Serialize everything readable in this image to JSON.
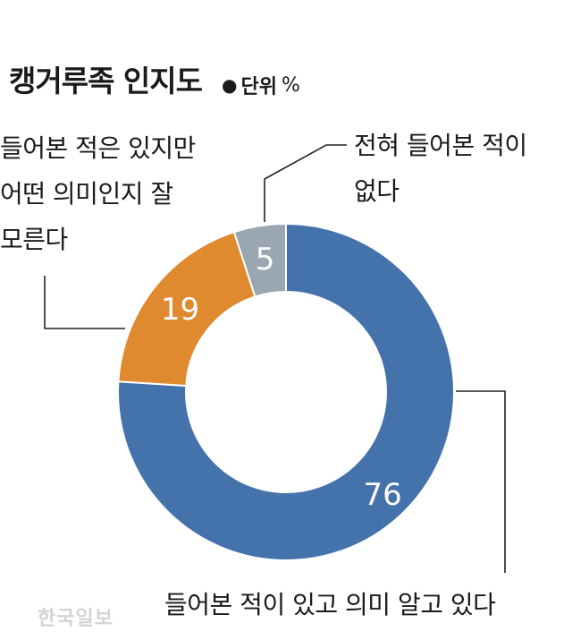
{
  "title": "캥거루족 인지도",
  "unit_label": "단위",
  "unit_symbol": "%",
  "chart_data": {
    "type": "pie",
    "donut": true,
    "slices": [
      {
        "label": "들어본 적이 있고 의미 알고 있다",
        "value": 76,
        "color": "#4472ab"
      },
      {
        "label": "들어본 적은 있지만 어떤 의미인지 잘 모른다",
        "value": 19,
        "color": "#e08a30"
      },
      {
        "label": "전혀 들어본 적이 없다",
        "value": 5,
        "color": "#9aa6b1"
      }
    ]
  },
  "labels": {
    "left": [
      "들어본 적은 있지만",
      "어떤 의미인지 잘",
      "모른다"
    ],
    "right": [
      "전혀 들어본 적이",
      "없다"
    ],
    "bottom": "들어본 적이 있고 의미 알고 있다"
  },
  "watermark": "한국일보"
}
